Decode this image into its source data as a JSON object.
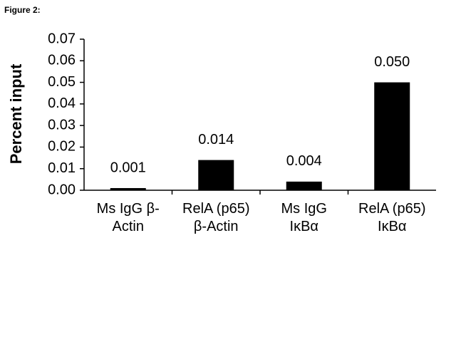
{
  "figure_label": "Figure 2:",
  "chart_data": {
    "type": "bar",
    "y_label": "Percent input",
    "categories": [
      "Ms IgG β-Actin",
      "RelA (p65) β-Actin",
      "Ms IgG IκBα",
      "RelA (p65) IκBα"
    ],
    "values": [
      0.001,
      0.014,
      0.004,
      0.05
    ],
    "value_labels": [
      "0.001",
      "0.014",
      "0.004",
      "0.050"
    ],
    "color": "#000000",
    "ylim": [
      0,
      0.07
    ],
    "yticks": [
      {
        "value": 0,
        "label": "0.00"
      },
      0.01,
      0.02,
      0.03,
      0.04,
      0.05,
      0.06,
      0.07
    ],
    "grid": false
  }
}
